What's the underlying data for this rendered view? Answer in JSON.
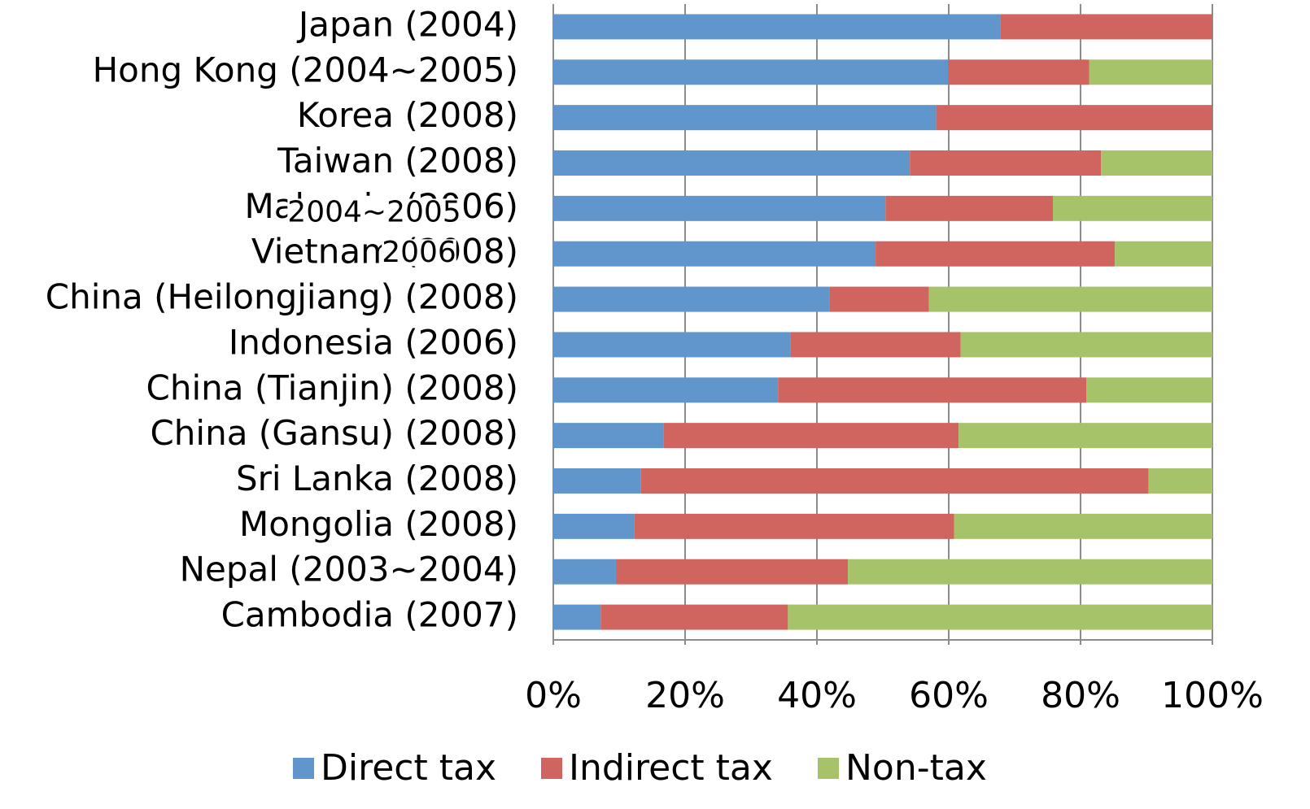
{
  "chart_data": {
    "type": "stacked-bar-horizontal",
    "categories": [
      "Japan (2004)",
      "Hong Kong (2004~2005)",
      "Korea (2008)",
      "Taiwan (2008)",
      "Malaysia (2006)",
      "Vietnam (2008)",
      "China (Heilongjiang) (2008)",
      "Indonesia (2006)",
      "China (Tianjin) (2008)",
      "China (Gansu) (2008)",
      "Sri Lanka (2008)",
      "Mongolia (2008)",
      "Nepal (2003~2004)",
      "Cambodia (2007)"
    ],
    "series": [
      {
        "name": "Direct tax",
        "color": "#6096cb",
        "values": [
          67.8,
          59.9,
          58.1,
          54.1,
          50.4,
          48.9,
          41.9,
          36.0,
          34.1,
          16.7,
          13.3,
          12.3,
          9.5,
          7.2
        ]
      },
      {
        "name": "Indirect tax",
        "color": "#d0645e",
        "values": [
          32.2,
          21.4,
          41.9,
          29.0,
          25.4,
          36.3,
          15.1,
          25.8,
          46.8,
          44.8,
          77.0,
          48.5,
          35.2,
          28.4
        ]
      },
      {
        "name": "Non-tax",
        "color": "#a7c36a",
        "values": [
          0,
          18.7,
          0,
          16.9,
          24.2,
          14.8,
          43.0,
          38.2,
          19.1,
          38.5,
          9.7,
          39.2,
          55.3,
          64.4
        ]
      }
    ],
    "xlim": [
      0,
      100
    ],
    "xticks": [
      {
        "value": 0,
        "label": "0%"
      },
      {
        "value": 20,
        "label": "20%"
      },
      {
        "value": 40,
        "label": "40%"
      },
      {
        "value": 60,
        "label": "60%"
      },
      {
        "value": 80,
        "label": "80%"
      },
      {
        "value": 100,
        "label": "100%"
      }
    ],
    "grid": true,
    "legend": "bottom",
    "annotations": [
      "2004~2005",
      "2006"
    ]
  }
}
